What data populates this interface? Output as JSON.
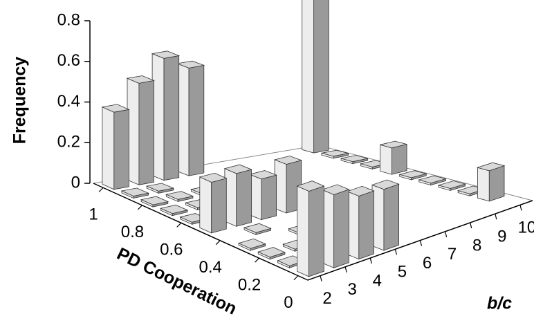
{
  "chart_data": {
    "type": "bar3d",
    "xlabel": "b/c",
    "ylabel": "PD Cooperation",
    "zlabel": "Frequency",
    "x": [
      2,
      3,
      4,
      5,
      6,
      7,
      8,
      9,
      10
    ],
    "y": [
      0,
      0.1,
      0.2,
      0.3,
      0.4,
      0.5,
      0.6,
      0.7,
      0.8,
      0.9,
      1
    ],
    "yticks": [
      0,
      0.2,
      0.4,
      0.6,
      0.8,
      1
    ],
    "zlim": [
      0,
      0.8
    ],
    "zticks": [
      0,
      0.2,
      0.4,
      0.6,
      0.8
    ],
    "colors": {
      "top": "#d9d9d9",
      "left": "#ededed",
      "right": "#9a9a9a"
    },
    "values": [
      [
        0.42,
        0.36,
        0.31,
        0.3,
        0,
        0,
        0,
        0,
        0
      ],
      [
        0.01,
        0.01,
        0.01,
        0,
        0,
        0,
        0,
        0,
        0.15
      ],
      [
        0.01,
        0.01,
        0,
        0,
        0,
        0,
        0,
        0,
        0.01
      ],
      [
        0.01,
        0,
        0.01,
        0,
        0,
        0,
        0,
        0,
        0.01
      ],
      [
        0,
        0.01,
        0,
        0,
        0,
        0,
        0,
        0,
        0.01
      ],
      [
        0.25,
        0.26,
        0.2,
        0.24,
        0,
        0,
        0,
        0,
        0.01
      ],
      [
        0.01,
        0.01,
        0.01,
        0,
        0,
        0,
        0,
        0,
        0.13
      ],
      [
        0.01,
        0.01,
        0,
        0,
        0,
        0,
        0,
        0,
        0.01
      ],
      [
        0.01,
        0.01,
        0.01,
        0,
        0,
        0,
        0,
        0,
        0.01
      ],
      [
        0.01,
        0.01,
        0,
        0,
        0,
        0,
        0,
        0,
        0.01
      ],
      [
        0.38,
        0.5,
        0.6,
        0.53,
        0,
        0,
        0,
        0,
        0.8
      ]
    ]
  }
}
